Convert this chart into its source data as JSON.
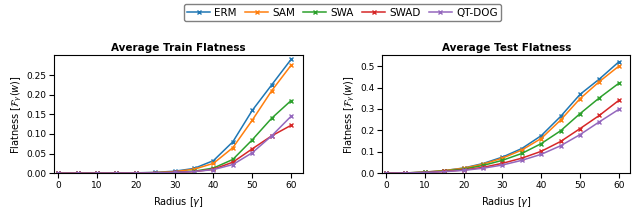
{
  "legend_labels": [
    "ERM",
    "SAM",
    "SWA",
    "SWAD",
    "QT-DOG"
  ],
  "colors": [
    "#1f77b4",
    "#ff7f0e",
    "#2ca02c",
    "#d62728",
    "#9467bd"
  ],
  "marker": "x",
  "train_title": "Average Train Flatness",
  "test_title": "Average Test Flatness",
  "xlabel": "Radius [$\\gamma$]",
  "ylabel": "Flatness [$\\mathcal{F}_{\\gamma}(w)$]",
  "x": [
    0,
    5,
    10,
    15,
    20,
    25,
    30,
    35,
    40,
    45,
    50,
    55,
    60
  ],
  "train_ERM": [
    0.0,
    0.0,
    0.0002,
    0.0004,
    0.0008,
    0.002,
    0.005,
    0.012,
    0.032,
    0.08,
    0.16,
    0.225,
    0.29
  ],
  "train_SAM": [
    0.0,
    0.0,
    0.0001,
    0.0003,
    0.0007,
    0.0015,
    0.004,
    0.01,
    0.025,
    0.065,
    0.135,
    0.21,
    0.275
  ],
  "train_SWA": [
    0.0,
    0.0,
    0.0001,
    0.0002,
    0.0005,
    0.001,
    0.002,
    0.005,
    0.013,
    0.035,
    0.085,
    0.14,
    0.185
  ],
  "train_SWAD": [
    0.0,
    0.0,
    0.0001,
    0.0002,
    0.0004,
    0.0008,
    0.002,
    0.004,
    0.01,
    0.028,
    0.062,
    0.095,
    0.122
  ],
  "train_QTDOG": [
    0.0,
    0.0,
    0.0001,
    0.0002,
    0.0004,
    0.0008,
    0.002,
    0.004,
    0.009,
    0.022,
    0.052,
    0.095,
    0.145
  ],
  "test_ERM": [
    0.0,
    0.001,
    0.005,
    0.012,
    0.024,
    0.045,
    0.075,
    0.115,
    0.175,
    0.265,
    0.368,
    0.44,
    0.52
  ],
  "test_SAM": [
    0.0,
    0.001,
    0.005,
    0.012,
    0.023,
    0.042,
    0.07,
    0.108,
    0.162,
    0.248,
    0.348,
    0.428,
    0.5
  ],
  "test_SWA": [
    0.0,
    0.001,
    0.004,
    0.01,
    0.019,
    0.036,
    0.06,
    0.092,
    0.138,
    0.198,
    0.278,
    0.352,
    0.42
  ],
  "test_SWAD": [
    0.0,
    0.001,
    0.003,
    0.008,
    0.015,
    0.027,
    0.046,
    0.07,
    0.102,
    0.148,
    0.208,
    0.27,
    0.34
  ],
  "test_QTDOG": [
    0.0,
    0.001,
    0.003,
    0.007,
    0.013,
    0.023,
    0.038,
    0.06,
    0.088,
    0.128,
    0.18,
    0.24,
    0.298
  ],
  "train_ylim": [
    0,
    0.3
  ],
  "test_ylim": [
    0,
    0.55
  ],
  "train_yticks": [
    0.0,
    0.05,
    0.1,
    0.15,
    0.2,
    0.25
  ],
  "test_yticks": [
    0.0,
    0.1,
    0.2,
    0.3,
    0.4,
    0.5
  ],
  "xticks": [
    0,
    10,
    20,
    30,
    40,
    50,
    60
  ],
  "xlim": [
    -1,
    63
  ]
}
